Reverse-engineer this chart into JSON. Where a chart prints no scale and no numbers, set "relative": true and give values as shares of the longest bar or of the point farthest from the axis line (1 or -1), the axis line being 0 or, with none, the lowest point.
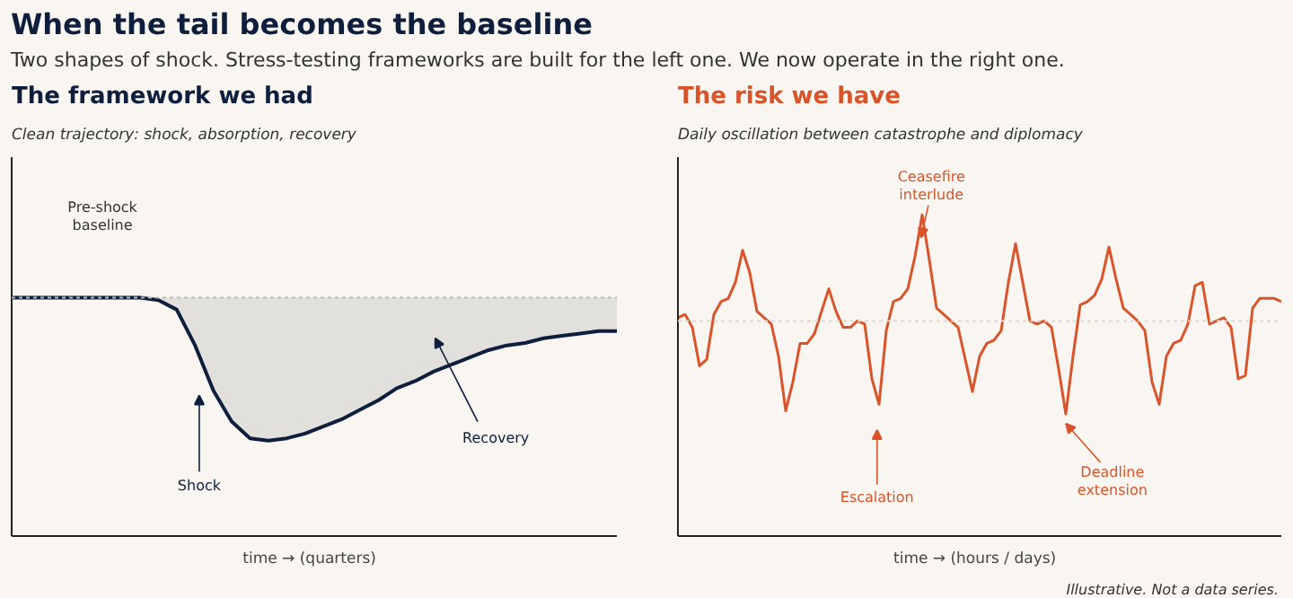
{
  "chart_data": [
    {
      "type": "other",
      "title": "When the tail becomes the baseline",
      "subtitle": "Two shapes of shock. Stress-testing frameworks are built for the left one. We now operate in the right one.",
      "annotations": [
        "Illustrative. Not a data series."
      ]
    },
    {
      "type": "line",
      "title": "The framework we had",
      "subtitle": "Clean trajectory: shock, absorption, recovery",
      "xlabel": "time  →  (quarters)",
      "relative": true,
      "grid": false,
      "tick_labels": false,
      "categories": [
        null,
        null,
        null,
        null,
        null,
        null,
        null,
        null,
        null,
        null,
        null,
        null,
        null,
        null,
        null,
        null,
        null,
        null,
        null,
        null,
        null,
        null,
        null,
        null,
        null,
        null,
        null,
        null,
        null,
        null,
        null,
        null,
        null,
        null
      ],
      "series": [
        {
          "color": "#0d1f3c",
          "values": [
            1.0,
            1.0,
            1.0,
            1.0,
            1.0,
            1.0,
            1.0,
            1.0,
            0.99,
            0.95,
            0.8,
            0.61,
            0.48,
            0.41,
            0.4,
            0.41,
            0.43,
            0.46,
            0.49,
            0.53,
            0.57,
            0.62,
            0.65,
            0.69,
            0.72,
            0.75,
            0.78,
            0.8,
            0.81,
            0.83,
            0.84,
            0.85,
            0.86,
            0.86
          ],
          "lower": [
            1.0,
            1.0,
            1.0,
            1.0,
            1.0,
            1.0,
            1.0,
            1.0,
            0.99,
            0.95,
            0.8,
            0.61,
            0.48,
            0.41,
            0.4,
            0.41,
            0.43,
            0.46,
            0.49,
            0.53,
            0.57,
            0.62,
            0.65,
            0.69,
            0.72,
            0.75,
            0.78,
            0.8,
            0.81,
            0.83,
            0.84,
            0.85,
            0.86,
            0.86
          ],
          "upper": [
            1.0,
            1.0,
            1.0,
            1.0,
            1.0,
            1.0,
            1.0,
            1.0,
            1.0,
            1.0,
            1.0,
            1.0,
            1.0,
            1.0,
            1.0,
            1.0,
            1.0,
            1.0,
            1.0,
            1.0,
            1.0,
            1.0,
            1.0,
            1.0,
            1.0,
            1.0,
            1.0,
            1.0,
            1.0,
            1.0,
            1.0,
            1.0,
            1.0,
            1.0
          ]
        }
      ],
      "ref_lines": [
        {
          "axis": "y",
          "value": 1.0,
          "color": "#b8b8b8",
          "line_style": "dotted"
        }
      ],
      "annotations": [
        "Pre-shock\nbaseline",
        "Shock",
        "Recovery"
      ]
    },
    {
      "type": "line",
      "title": "The risk we have",
      "subtitle": "Daily oscillation between catastrophe and diplomacy",
      "xlabel": "time  →  (hours / days)",
      "relative": true,
      "grid": false,
      "tick_labels": false,
      "categories": [
        null,
        null,
        null,
        null,
        null,
        null,
        null,
        null,
        null,
        null,
        null,
        null,
        null,
        null,
        null,
        null,
        null,
        null,
        null,
        null,
        null,
        null,
        null,
        null,
        null,
        null,
        null,
        null,
        null,
        null,
        null,
        null,
        null,
        null,
        null,
        null,
        null,
        null,
        null,
        null,
        null,
        null,
        null,
        null,
        null,
        null,
        null,
        null,
        null,
        null,
        null,
        null,
        null,
        null,
        null,
        null,
        null,
        null,
        null,
        null,
        null,
        null,
        null,
        null,
        null,
        null,
        null,
        null,
        null,
        null,
        null,
        null,
        null,
        null,
        null,
        null,
        null,
        null,
        null,
        null,
        null,
        null,
        null,
        null,
        null
      ],
      "series": [
        {
          "color": "#d9542b",
          "values": [
            0.68,
            0.69,
            0.65,
            0.53,
            0.55,
            0.69,
            0.73,
            0.74,
            0.79,
            0.89,
            0.82,
            0.7,
            0.68,
            0.66,
            0.56,
            0.39,
            0.48,
            0.6,
            0.6,
            0.63,
            0.7,
            0.77,
            0.7,
            0.65,
            0.65,
            0.67,
            0.66,
            0.49,
            0.41,
            0.64,
            0.73,
            0.74,
            0.77,
            0.87,
            1.0,
            0.86,
            0.71,
            0.69,
            0.67,
            0.65,
            0.55,
            0.45,
            0.56,
            0.6,
            0.61,
            0.64,
            0.79,
            0.91,
            0.79,
            0.67,
            0.66,
            0.67,
            0.65,
            0.52,
            0.38,
            0.56,
            0.72,
            0.73,
            0.75,
            0.8,
            0.9,
            0.8,
            0.71,
            0.69,
            0.67,
            0.64,
            0.48,
            0.41,
            0.56,
            0.6,
            0.61,
            0.66,
            0.78,
            0.79,
            0.66,
            0.67,
            0.68,
            0.65,
            0.49,
            0.5,
            0.71,
            0.74,
            0.74,
            0.74,
            0.73
          ]
        }
      ],
      "ref_lines": [
        {
          "axis": "y",
          "value": 0.67,
          "color": "#e0d8d0",
          "line_style": "dotted"
        }
      ],
      "annotations": [
        "Ceasefire\ninterlude",
        "Escalation",
        "Deadline\nextension"
      ]
    }
  ]
}
